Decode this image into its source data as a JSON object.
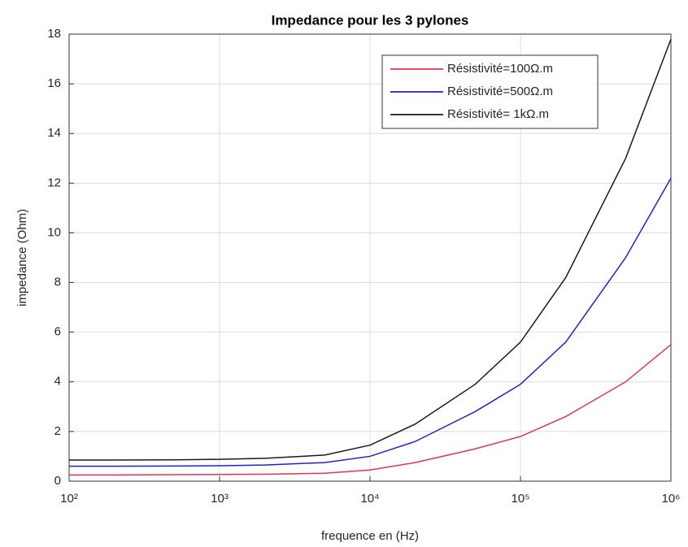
{
  "chart_data": {
    "type": "line",
    "title": "Impedance pour les 3 pylones",
    "xlabel": "frequence en (Hz)",
    "ylabel": "impedance (Ohm)",
    "xscale": "log",
    "x": [
      100,
      200,
      500,
      1000,
      2000,
      5000,
      10000,
      20000,
      50000,
      100000,
      200000,
      500000,
      1000000
    ],
    "series": [
      {
        "name": "Résistivité=100Ω.m",
        "color": "#e8315a",
        "values": [
          0.25,
          0.25,
          0.26,
          0.27,
          0.28,
          0.32,
          0.45,
          0.75,
          1.3,
          1.8,
          2.6,
          4,
          5.5
        ]
      },
      {
        "name": "Résistivité=500Ω.m",
        "color": "#2020d0",
        "values": [
          0.6,
          0.6,
          0.61,
          0.62,
          0.65,
          0.75,
          1.0,
          1.6,
          2.8,
          3.9,
          5.6,
          9,
          12.2
        ]
      },
      {
        "name": "Résistivité= 1kΩ.m",
        "color": "#1a1a1a",
        "values": [
          0.85,
          0.85,
          0.86,
          0.88,
          0.92,
          1.05,
          1.45,
          2.3,
          3.9,
          5.6,
          8.2,
          13,
          17.8
        ]
      }
    ],
    "xlim": [
      100,
      1000000
    ],
    "xticks": [
      {
        "value": 100,
        "label": "10²"
      },
      {
        "value": 1000,
        "label": "10³"
      },
      {
        "value": 10000,
        "label": "10⁴"
      },
      {
        "value": 100000,
        "label": "10⁵"
      },
      {
        "value": 1000000,
        "label": "10⁶"
      }
    ],
    "ylim": [
      0,
      18
    ],
    "yticks": [
      0,
      2,
      4,
      6,
      8,
      10,
      12,
      14,
      16,
      18
    ],
    "grid": true,
    "legend": "upper right"
  }
}
